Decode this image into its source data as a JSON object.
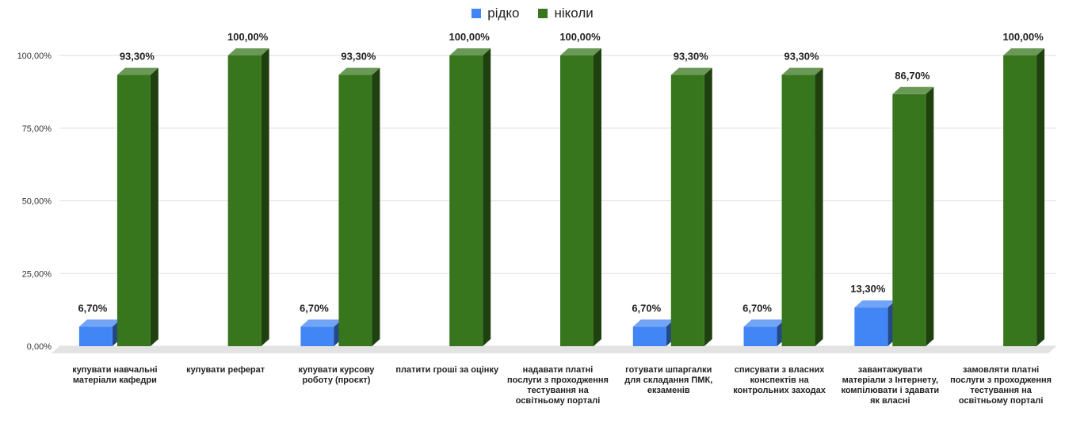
{
  "chart_data": {
    "type": "bar",
    "style": "3d-clustered-column",
    "categories": [
      "купувати навчальні матеріали кафедри",
      "купувати реферат",
      "купувати курсову роботу (проєкт)",
      "платити гроші за оцінку",
      "надавати платні послуги з проходження тестування на освітньому порталі",
      "готувати шпаргалки для складання ПМК, екзаменів",
      "списувати з власних конспектів на контрольних заходах",
      "завантажувати матеріали з Інтернету, компілювати і здавати як власні",
      "замовляти платні послуги з проходження тестування на освітньому порталі"
    ],
    "series": [
      {
        "name": "рідко",
        "color": "#4285f4",
        "values": [
          6.7,
          null,
          6.7,
          null,
          null,
          6.7,
          6.7,
          13.3,
          null
        ],
        "labels": [
          "6,70%",
          "",
          "6,70%",
          "",
          "",
          "6,70%",
          "6,70%",
          "13,30%",
          ""
        ]
      },
      {
        "name": "ніколи",
        "color": "#38761d",
        "values": [
          93.3,
          100,
          93.3,
          100,
          100,
          93.3,
          93.3,
          86.7,
          100
        ],
        "labels": [
          "93,30%",
          "100,00%",
          "93,30%",
          "100,00%",
          "100,00%",
          "93,30%",
          "93,30%",
          "86,70%",
          "100,00%"
        ]
      }
    ],
    "yticks": [
      "0,00%",
      "25,00%",
      "50,00%",
      "75,00%",
      "100,00%"
    ],
    "ylim": [
      0,
      100
    ],
    "grid": true,
    "legend_position": "top"
  }
}
